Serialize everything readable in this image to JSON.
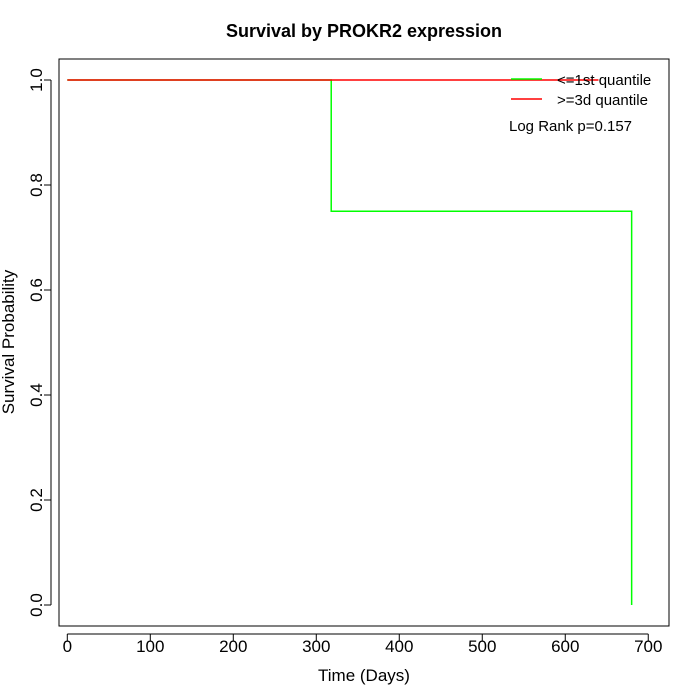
{
  "chart_data": {
    "type": "line",
    "title": "Survival by PROKR2 expression",
    "xlabel": "Time (Days)",
    "ylabel": "Survival Probability",
    "xlim": [
      -10,
      725
    ],
    "ylim": [
      -0.04,
      1.04
    ],
    "x_ticks": [
      0,
      100,
      200,
      300,
      400,
      500,
      600,
      700
    ],
    "y_ticks": [
      0.0,
      0.2,
      0.4,
      0.6,
      0.8,
      1.0
    ],
    "x_tick_labels": [
      "0",
      "100",
      "200",
      "300",
      "400",
      "500",
      "600",
      "700"
    ],
    "y_tick_labels": [
      "0.0",
      "0.2",
      "0.4",
      "0.6",
      "0.8",
      "1.0"
    ],
    "grid": false,
    "legend_position": "top-right",
    "series": [
      {
        "name": "<=1st quantile",
        "color": "#00ff00",
        "step": true,
        "points": [
          [
            0,
            1.0
          ],
          [
            318,
            1.0
          ],
          [
            318,
            0.75
          ],
          [
            680,
            0.75
          ],
          [
            680,
            0.0
          ]
        ]
      },
      {
        "name": ">=3d quantile",
        "color": "#ff0000",
        "step": true,
        "points": [
          [
            0,
            1.0
          ],
          [
            640,
            1.0
          ]
        ]
      }
    ],
    "annotation": "Log Rank p=0.157"
  }
}
